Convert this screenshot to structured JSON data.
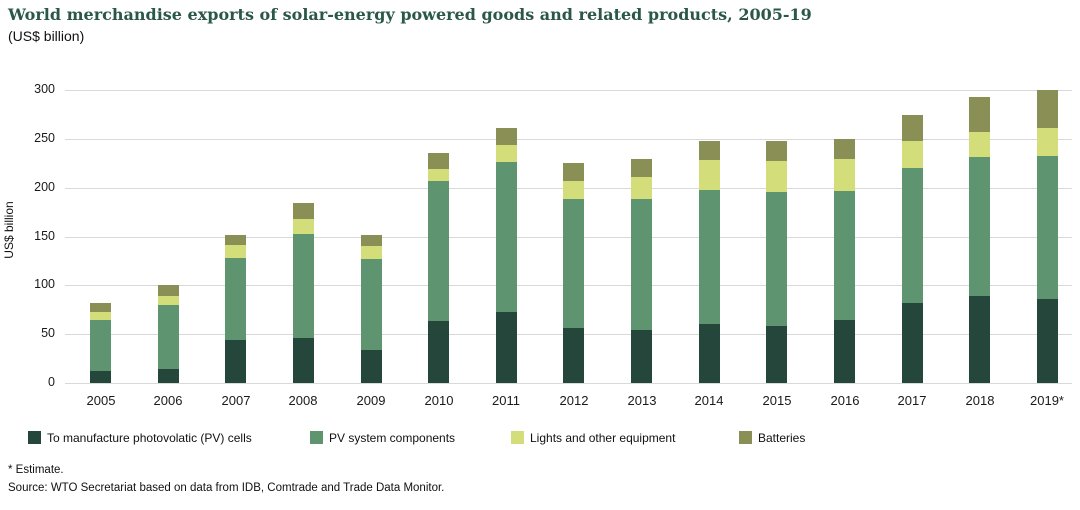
{
  "header": {
    "title": "World merchandise exports of solar-energy powered goods and related products, 2005-19",
    "subtitle": "(US$ billion)"
  },
  "chart_data": {
    "type": "bar",
    "stacked": true,
    "title": "World merchandise exports of solar-energy powered goods and related products, 2005-19",
    "subtitle": "(US$ billion)",
    "xlabel": "",
    "ylabel": "US$ billion",
    "ylim": [
      0,
      300
    ],
    "yticks": [
      0,
      50,
      100,
      150,
      200,
      250,
      300
    ],
    "grid": true,
    "legend_position": "bottom",
    "categories": [
      "2005",
      "2006",
      "2007",
      "2008",
      "2009",
      "2010",
      "2011",
      "2012",
      "2013",
      "2014",
      "2015",
      "2016",
      "2017",
      "2018",
      "2019*"
    ],
    "series": [
      {
        "name": "To manufacture photovolatic (PV) cells",
        "color": "#25463b",
        "values": [
          12,
          14,
          44,
          46,
          34,
          63,
          73,
          56,
          54,
          60,
          58,
          64,
          82,
          89,
          86
        ]
      },
      {
        "name": "PV system components",
        "color": "#5f9470",
        "values": [
          52,
          66,
          84,
          107,
          93,
          144,
          153,
          132,
          134,
          138,
          138,
          133,
          138,
          142,
          146
        ]
      },
      {
        "name": "Lights and other equipment",
        "color": "#d3de7b",
        "values": [
          9,
          9,
          13,
          15,
          13,
          12,
          18,
          19,
          23,
          30,
          31,
          32,
          28,
          26,
          29
        ]
      },
      {
        "name": "Batteries",
        "color": "#8a9055",
        "values": [
          9,
          11,
          11,
          16,
          12,
          17,
          17,
          18,
          18,
          20,
          21,
          21,
          26,
          36,
          39
        ]
      }
    ]
  },
  "footnotes": {
    "estimate": "* Estimate.",
    "source": "Source: WTO Secretariat based on data from IDB, Comtrade and Trade Data Monitor."
  },
  "colors": {
    "title_text": "#2a5749",
    "gridline": "#d9d9d9",
    "body_text": "#111111"
  }
}
